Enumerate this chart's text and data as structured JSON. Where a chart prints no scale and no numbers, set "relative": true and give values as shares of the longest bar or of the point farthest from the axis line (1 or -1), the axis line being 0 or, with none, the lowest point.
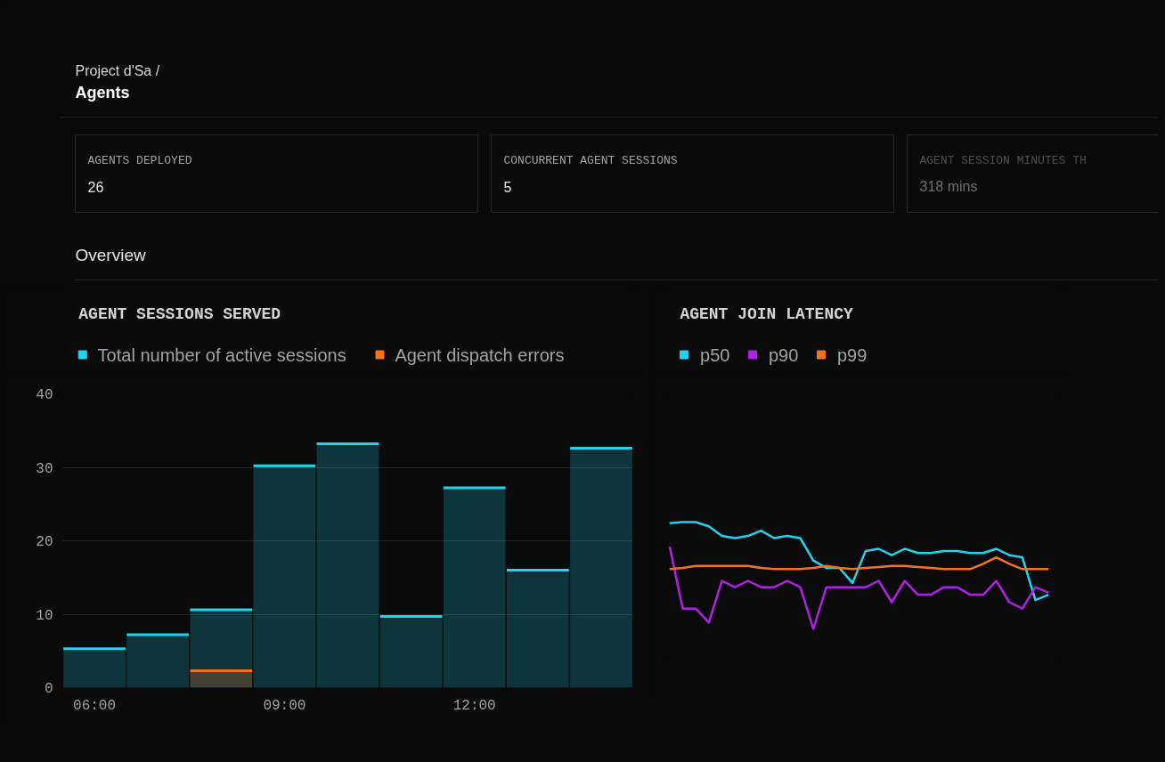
{
  "chart_data": [
    {
      "type": "other",
      "subtitle": "Project d'Sa /",
      "title": "Agents",
      "annotations": [
        "AGENTS DEPLOYED",
        "26",
        "CONCURRENT AGENT SESSIONS",
        "5",
        "AGENT SESSION MINUTES TH",
        "318 mins",
        "Overview"
      ]
    },
    {
      "type": "bar",
      "title": "AGENT SESSIONS SERVED",
      "x": [
        6,
        7,
        8,
        9,
        10,
        11,
        12,
        13,
        14
      ],
      "series": [
        {
          "name": "Total number of active sessions",
          "color": "#22d3ee",
          "values": [
            5.3,
            7.2,
            10.6,
            30.2,
            33.2,
            9.7,
            27.2,
            16,
            32.6
          ]
        },
        {
          "name": "Agent dispatch errors",
          "color": "#f97316",
          "values": [
            null,
            null,
            2.3,
            null,
            null,
            null,
            null,
            null,
            null
          ]
        }
      ],
      "xlim": [
        5.5,
        14.5
      ],
      "xticks": [
        {
          "value": 6,
          "label": "06:00"
        },
        {
          "value": 9,
          "label": "09:00"
        },
        {
          "value": 12,
          "label": "12:00"
        }
      ],
      "ylim": [
        0,
        40
      ],
      "yticks": [
        0,
        10,
        20,
        30,
        40
      ],
      "grid": "y",
      "legend": "top left"
    },
    {
      "type": "line",
      "title": "AGENT JOIN LATENCY",
      "relative": true,
      "categories": [
        null,
        null,
        null,
        null,
        null,
        null,
        null,
        null,
        null,
        null,
        null,
        null,
        null,
        null,
        null,
        null,
        null,
        null,
        null,
        null,
        null,
        null,
        null,
        null,
        null,
        null,
        null,
        null,
        null,
        null
      ],
      "series": [
        {
          "name": "p50",
          "color": "#22d3ee",
          "values": [
            0.99,
            1.0,
            1.0,
            0.96,
            0.87,
            0.85,
            0.87,
            0.92,
            0.85,
            0.87,
            0.85,
            0.64,
            0.57,
            0.57,
            0.43,
            0.73,
            0.75,
            0.69,
            0.75,
            0.71,
            0.71,
            0.73,
            0.73,
            0.71,
            0.71,
            0.75,
            0.69,
            0.67,
            0.27,
            0.32
          ]
        },
        {
          "name": "p90",
          "color": "#b31fe6",
          "values": [
            0.77,
            0.19,
            0.19,
            0.06,
            0.45,
            0.39,
            0.45,
            0.39,
            0.39,
            0.45,
            0.39,
            0,
            0.39,
            0.39,
            0.39,
            0.39,
            0.45,
            0.25,
            0.45,
            0.32,
            0.32,
            0.39,
            0.39,
            0.32,
            0.32,
            0.45,
            0.25,
            0.19,
            0.39,
            0.34
          ]
        },
        {
          "name": "p99",
          "color": "#f97316",
          "values": [
            0.56,
            0.57,
            0.59,
            0.59,
            0.59,
            0.59,
            0.59,
            0.57,
            0.56,
            0.56,
            0.56,
            0.57,
            0.59,
            0.57,
            0.56,
            0.57,
            0.58,
            0.59,
            0.59,
            0.58,
            0.57,
            0.56,
            0.56,
            0.56,
            0.61,
            0.67,
            0.61,
            0.56,
            0.56,
            0.56
          ]
        }
      ],
      "grid": false,
      "legend": "top left",
      "line_style": "solid",
      "marker": "none"
    }
  ]
}
